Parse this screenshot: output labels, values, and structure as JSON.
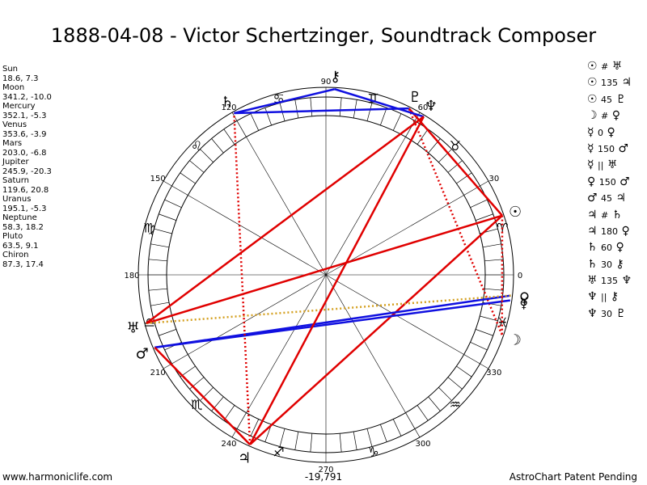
{
  "title": "1888-04-08 - Victor Schertzinger, Soundtrack Composer",
  "footer": {
    "left": "www.harmoniclife.com",
    "center": "-19,791",
    "right": "AstroChart Patent Pending"
  },
  "positions": [
    {
      "name": "Sun",
      "value": "18.6, 7.3"
    },
    {
      "name": "Moon",
      "value": "341.2, -10.0"
    },
    {
      "name": "Mercury",
      "value": "352.1, -5.3"
    },
    {
      "name": "Venus",
      "value": "353.6, -3.9"
    },
    {
      "name": "Mars",
      "value": "203.0, -6.8"
    },
    {
      "name": "Jupiter",
      "value": "245.9, -20.3"
    },
    {
      "name": "Saturn",
      "value": "119.6, 20.8"
    },
    {
      "name": "Uranus",
      "value": "195.1, -5.3"
    },
    {
      "name": "Neptune",
      "value": "58.3, 18.2"
    },
    {
      "name": "Pluto",
      "value": "63.5, 9.1"
    },
    {
      "name": "Chiron",
      "value": "87.3, 17.4"
    }
  ],
  "aspects": [
    {
      "p1": "☉",
      "op": "#",
      "p2": "♅"
    },
    {
      "p1": "☉",
      "op": "135",
      "p2": "♃"
    },
    {
      "p1": "☉",
      "op": "45",
      "p2": "♇"
    },
    {
      "p1": "☽",
      "op": "#",
      "p2": "♀"
    },
    {
      "p1": "☿",
      "op": "0",
      "p2": "♀"
    },
    {
      "p1": "☿",
      "op": "150",
      "p2": "♂"
    },
    {
      "p1": "☿",
      "op": "||",
      "p2": "♅"
    },
    {
      "p1": "♀",
      "op": "150",
      "p2": "♂"
    },
    {
      "p1": "♂",
      "op": "45",
      "p2": "♃"
    },
    {
      "p1": "♃",
      "op": "#",
      "p2": "♄"
    },
    {
      "p1": "♃",
      "op": "180",
      "p2": "♀"
    },
    {
      "p1": "♄",
      "op": "60",
      "p2": "♀"
    },
    {
      "p1": "♄",
      "op": "30",
      "p2": "⚷"
    },
    {
      "p1": "♅",
      "op": "135",
      "p2": "♆"
    },
    {
      "p1": "♆",
      "op": "||",
      "p2": "⚷"
    },
    {
      "p1": "♆",
      "op": "30",
      "p2": "♇"
    }
  ],
  "chart_data": {
    "type": "radial-wheel",
    "degree_labels": [
      "0",
      "30",
      "60",
      "90",
      "120",
      "150",
      "180",
      "210",
      "240",
      "270",
      "300",
      "330"
    ],
    "zodiac_signs": [
      {
        "name": "Aries",
        "glyph": "♈"
      },
      {
        "name": "Taurus",
        "glyph": "♉"
      },
      {
        "name": "Gemini",
        "glyph": "♊"
      },
      {
        "name": "Cancer",
        "glyph": "♋"
      },
      {
        "name": "Leo",
        "glyph": "♌"
      },
      {
        "name": "Virgo",
        "glyph": "♍"
      },
      {
        "name": "Libra",
        "glyph": "♎"
      },
      {
        "name": "Scorpio",
        "glyph": "♏"
      },
      {
        "name": "Sagittarius",
        "glyph": "♐"
      },
      {
        "name": "Capricorn",
        "glyph": "♑"
      },
      {
        "name": "Aquarius",
        "glyph": "♒"
      },
      {
        "name": "Pisces",
        "glyph": "♓"
      }
    ],
    "planets": [
      {
        "name": "Sun",
        "glyph": "☉",
        "longitude": 18.6,
        "latitude": 7.3
      },
      {
        "name": "Moon",
        "glyph": "☽",
        "longitude": 341.2,
        "latitude": -10.0
      },
      {
        "name": "Mercury",
        "glyph": "☿",
        "longitude": 352.1,
        "latitude": -5.3
      },
      {
        "name": "Venus",
        "glyph": "♀",
        "longitude": 353.6,
        "latitude": -3.9
      },
      {
        "name": "Mars",
        "glyph": "♂",
        "longitude": 203.0,
        "latitude": -6.8
      },
      {
        "name": "Jupiter",
        "glyph": "♃",
        "longitude": 245.9,
        "latitude": -20.3
      },
      {
        "name": "Saturn",
        "glyph": "♄",
        "longitude": 119.6,
        "latitude": 20.8
      },
      {
        "name": "Uranus",
        "glyph": "♅",
        "longitude": 195.1,
        "latitude": -5.3
      },
      {
        "name": "Neptune",
        "glyph": "♆",
        "longitude": 58.3,
        "latitude": 18.2
      },
      {
        "name": "Pluto",
        "glyph": "♇",
        "longitude": 63.5,
        "latitude": 9.1
      },
      {
        "name": "Chiron",
        "glyph": "⚷",
        "longitude": 87.3,
        "latitude": 17.4
      }
    ],
    "aspect_lines": [
      {
        "from": "Sun",
        "to": "Uranus",
        "color": "#e00000",
        "style": "solid"
      },
      {
        "from": "Sun",
        "to": "Jupiter",
        "color": "#e00000",
        "style": "solid"
      },
      {
        "from": "Sun",
        "to": "Pluto",
        "color": "#e00000",
        "style": "solid"
      },
      {
        "from": "Moon",
        "to": "Pluto",
        "color": "#e00000",
        "style": "dotted"
      },
      {
        "from": "Mercury",
        "to": "Mars",
        "color": "#1010e0",
        "style": "solid"
      },
      {
        "from": "Venus",
        "to": "Mars",
        "color": "#1010e0",
        "style": "solid"
      },
      {
        "from": "Venus",
        "to": "Uranus",
        "color": "#d4a020",
        "style": "dotted"
      },
      {
        "from": "Mars",
        "to": "Jupiter",
        "color": "#e00000",
        "style": "solid"
      },
      {
        "from": "Jupiter",
        "to": "Neptune",
        "color": "#e00000",
        "style": "solid"
      },
      {
        "from": "Jupiter",
        "to": "Saturn",
        "color": "#e00000",
        "style": "dotted"
      },
      {
        "from": "Saturn",
        "to": "Pluto",
        "color": "#1010e0",
        "style": "solid"
      },
      {
        "from": "Saturn",
        "to": "Chiron",
        "color": "#1010e0",
        "style": "solid"
      },
      {
        "from": "Neptune",
        "to": "Chiron",
        "color": "#1010e0",
        "style": "solid"
      },
      {
        "from": "Uranus",
        "to": "Neptune",
        "color": "#e00000",
        "style": "solid"
      },
      {
        "from": "Sun",
        "to": "Moon",
        "color": "#e00000",
        "style": "dotted"
      }
    ]
  }
}
